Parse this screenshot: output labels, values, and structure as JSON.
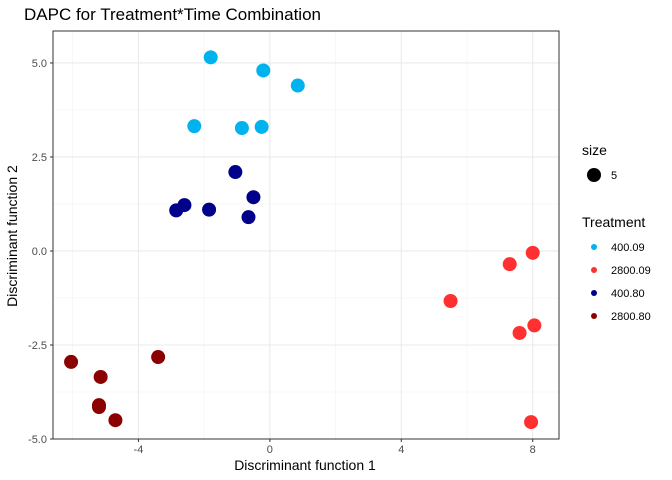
{
  "chart_data": {
    "type": "scatter",
    "title": "DAPC for Treatment*Time Combination",
    "xlabel": "Discriminant function 1",
    "ylabel": "Discriminant function 2",
    "xlim": [
      -6.6,
      8.8
    ],
    "ylim": [
      -5.0,
      5.85
    ],
    "x_ticks": [
      -4,
      0,
      4,
      8
    ],
    "x_tick_labels": [
      "-4",
      "0",
      "4",
      "8"
    ],
    "y_ticks": [
      -5.0,
      -2.5,
      0.0,
      2.5,
      5.0
    ],
    "y_tick_labels": [
      "-5.0",
      "-2.5",
      "0.0",
      "2.5",
      "5.0"
    ],
    "grid": true,
    "legend_position": "right",
    "size_legend": {
      "title": "size",
      "label": "5"
    },
    "color_legend_title": "Treatment",
    "series": [
      {
        "name": "400.09",
        "color": "#00b2ee",
        "points": [
          {
            "x": -1.8,
            "y": 5.15
          },
          {
            "x": -0.2,
            "y": 4.8
          },
          {
            "x": 0.85,
            "y": 4.4
          },
          {
            "x": -2.3,
            "y": 3.32
          },
          {
            "x": -0.85,
            "y": 3.27
          },
          {
            "x": -0.25,
            "y": 3.3
          }
        ]
      },
      {
        "name": "2800.09",
        "color": "#ff3030",
        "points": [
          {
            "x": 8.0,
            "y": -0.05
          },
          {
            "x": 7.3,
            "y": -0.35
          },
          {
            "x": 5.5,
            "y": -1.33
          },
          {
            "x": 8.05,
            "y": -1.98
          },
          {
            "x": 7.6,
            "y": -2.18
          },
          {
            "x": 7.95,
            "y": -4.55
          }
        ]
      },
      {
        "name": "400.80",
        "color": "#00008b",
        "points": [
          {
            "x": -1.05,
            "y": 2.1
          },
          {
            "x": -0.5,
            "y": 1.43
          },
          {
            "x": -2.6,
            "y": 1.22
          },
          {
            "x": -2.85,
            "y": 1.08
          },
          {
            "x": -1.85,
            "y": 1.1
          },
          {
            "x": -0.65,
            "y": 0.9
          }
        ]
      },
      {
        "name": "2800.80",
        "color": "#8b0000",
        "points": [
          {
            "x": -3.4,
            "y": -2.82
          },
          {
            "x": -6.05,
            "y": -2.95
          },
          {
            "x": -5.15,
            "y": -3.35
          },
          {
            "x": -5.2,
            "y": -4.1
          },
          {
            "x": -5.2,
            "y": -4.15
          },
          {
            "x": -4.7,
            "y": -4.5
          }
        ]
      }
    ]
  }
}
